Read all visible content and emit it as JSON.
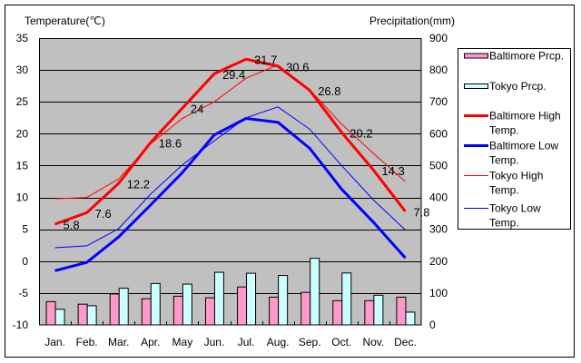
{
  "chart_data": {
    "type": "bar",
    "title": "",
    "xlabel": "",
    "ylabel": "Temperature(℃)",
    "y2label": "Precipitation(mm)",
    "categories": [
      "Jan.",
      "Feb.",
      "Mar.",
      "Apr.",
      "May",
      "Jun.",
      "Jul.",
      "Aug.",
      "Sep.",
      "Oct.",
      "Nov.",
      "Dec."
    ],
    "ylim": [
      -10,
      35
    ],
    "yticks": [
      35,
      30,
      25,
      20,
      15,
      10,
      5,
      0,
      -5,
      -10
    ],
    "y2lim": [
      0,
      900
    ],
    "y2ticks": [
      900,
      800,
      700,
      600,
      500,
      400,
      300,
      200,
      100,
      0
    ],
    "grid": true,
    "legend_position": "right",
    "series": [
      {
        "name": "Baltimore Prcp.",
        "mark": "bar",
        "axis": "right",
        "color": "#FF99CC",
        "values": [
          73,
          65,
          97,
          82,
          90,
          85,
          119,
          87,
          102,
          76,
          76,
          87
        ]
      },
      {
        "name": "Tokyo Prcp.",
        "mark": "bar",
        "axis": "right",
        "color": "#CCFFFF",
        "values": [
          49,
          60,
          115,
          130,
          128,
          165,
          162,
          155,
          209,
          163,
          93,
          40
        ]
      },
      {
        "name": "Baltimore High Temp.",
        "mark": "line",
        "axis": "left",
        "color": "#FF0000",
        "values": [
          5.8,
          7.6,
          12.2,
          18.6,
          24,
          29.4,
          31.7,
          30.6,
          26.8,
          20.2,
          14.3,
          7.8
        ],
        "data_labels": [
          "5.8",
          "7.6",
          "12.2",
          "18.6",
          "24",
          "29.4",
          "31.7",
          "30.6",
          "26.8",
          "20.2",
          "14.3",
          "7.8"
        ]
      },
      {
        "name": "Baltimore Low Temp.",
        "mark": "line",
        "axis": "left",
        "color": "#0000FF",
        "values": [
          -1.5,
          -0.2,
          3.8,
          8.8,
          13.9,
          19.8,
          22.4,
          21.8,
          17.7,
          11.3,
          6.1,
          0.5
        ]
      },
      {
        "name": "Tokyo High Temp.",
        "mark": "line",
        "axis": "left",
        "color": "#FF0000",
        "values": [
          9.8,
          10.0,
          12.9,
          18.4,
          22.4,
          25.0,
          28.7,
          30.8,
          26.9,
          21.5,
          16.9,
          12.5
        ]
      },
      {
        "name": "Tokyo Low Temp.",
        "mark": "line",
        "axis": "left",
        "color": "#0000FF",
        "values": [
          2.1,
          2.4,
          5.1,
          10.5,
          15.1,
          18.9,
          22.5,
          24.2,
          20.7,
          15.0,
          9.6,
          4.9
        ]
      }
    ],
    "legend": {
      "entries": [
        {
          "series_index": 0,
          "label_lines": [
            "Baltimore Prcp."
          ]
        },
        {
          "series_index": 1,
          "label_lines": [
            "Tokyo Prcp."
          ]
        },
        {
          "series_index": 2,
          "label_lines": [
            "Baltimore High",
            "Temp."
          ]
        },
        {
          "series_index": 3,
          "label_lines": [
            "Baltimore Low",
            "Temp."
          ]
        },
        {
          "series_index": 4,
          "label_lines": [
            "Tokyo High",
            "Temp."
          ]
        },
        {
          "series_index": 5,
          "label_lines": [
            "Tokyo Low",
            "Temp."
          ]
        }
      ]
    },
    "colors": {
      "plot_background": "#C0C0C0",
      "gridline": "#000000"
    }
  }
}
